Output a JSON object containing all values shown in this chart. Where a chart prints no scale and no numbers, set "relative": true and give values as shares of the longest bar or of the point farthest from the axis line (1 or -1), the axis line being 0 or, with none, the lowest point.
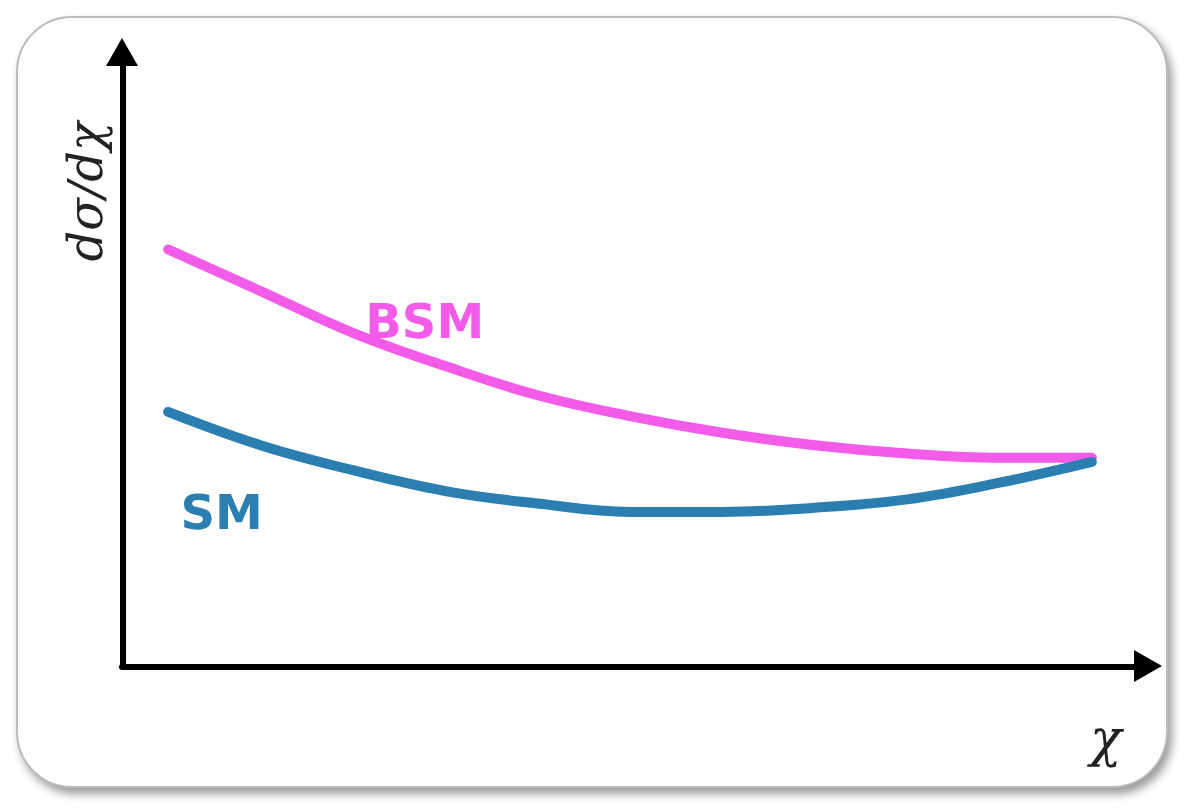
{
  "chart_data": {
    "type": "line",
    "relative": true,
    "xlabel": "χ",
    "ylabel": "dσ/dχ",
    "categories": [
      null,
      null,
      null,
      null,
      null,
      null,
      null,
      null,
      null,
      null,
      null
    ],
    "grid": false,
    "legend": false,
    "marker": "none",
    "line_style": "solid",
    "series": [
      {
        "name": "BSM",
        "color": "#f25ce8",
        "values": [
          1,
          0.9,
          0.8,
          0.72,
          0.65,
          0.6,
          0.56,
          0.53,
          0.51,
          0.5,
          0.5
        ]
      },
      {
        "name": "SM",
        "color": "#2a7fb0",
        "values": [
          0.61,
          0.53,
          0.47,
          0.42,
          0.39,
          0.37,
          0.37,
          0.38,
          0.4,
          0.44,
          0.49
        ]
      }
    ]
  }
}
